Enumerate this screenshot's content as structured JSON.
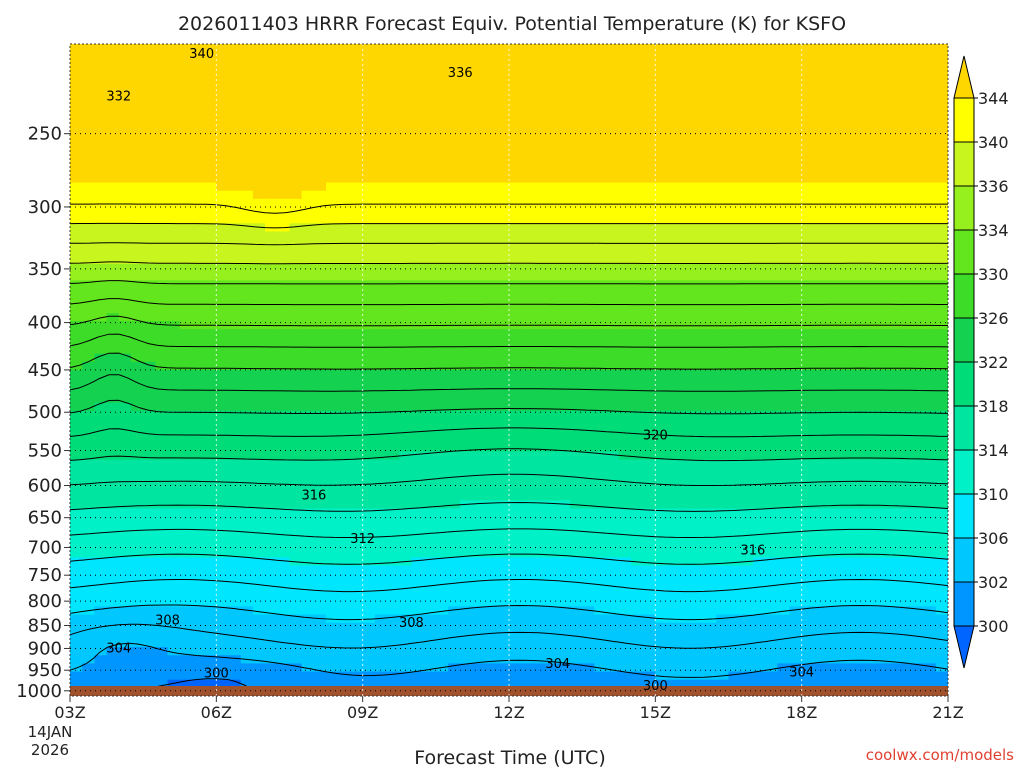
{
  "chart_data": {
    "type": "heatmap",
    "title": "2026011403 HRRR Forecast Equiv. Potential Temperature (K) for KSFO",
    "xlabel": "Forecast Time (UTC)",
    "ylabel": "",
    "x_ticks": [
      "03Z",
      "06Z",
      "09Z",
      "12Z",
      "15Z",
      "18Z",
      "21Z"
    ],
    "x_range": [
      3,
      21
    ],
    "date_label_line1": "14JAN",
    "date_label_line2": "2026",
    "y_ticks": [
      250,
      300,
      350,
      400,
      450,
      500,
      550,
      600,
      650,
      700,
      750,
      800,
      850,
      900,
      950,
      1000
    ],
    "y_range_hpa": [
      200,
      1013
    ],
    "y_scale": "log",
    "grid": "dotted",
    "colorbar": {
      "levels": [
        300,
        302,
        306,
        310,
        314,
        318,
        322,
        326,
        330,
        334,
        336,
        340,
        344
      ],
      "tick_labels": [
        "300",
        "302",
        "306",
        "310",
        "314",
        "318",
        "322",
        "326",
        "330",
        "334",
        "336",
        "340",
        "344"
      ],
      "colors": [
        "#0064ff",
        "#0096ff",
        "#00c8ff",
        "#00e6ff",
        "#00f0c8",
        "#00e6a0",
        "#00dc78",
        "#14d250",
        "#3cdc28",
        "#64e61e",
        "#96f01e",
        "#c8f51e",
        "#ffff00",
        "#ffd700"
      ],
      "extend": "both"
    },
    "contour_labels": [
      {
        "value": "340",
        "x": 5.7,
        "p": 205
      },
      {
        "value": "336",
        "x": 11.0,
        "p": 215
      },
      {
        "value": "332",
        "x": 4.0,
        "p": 228
      },
      {
        "value": "320",
        "x": 15.0,
        "p": 530
      },
      {
        "value": "316",
        "x": 8.0,
        "p": 615
      },
      {
        "value": "316",
        "x": 17.0,
        "p": 705
      },
      {
        "value": "312",
        "x": 9.0,
        "p": 685
      },
      {
        "value": "308",
        "x": 5.0,
        "p": 840
      },
      {
        "value": "308",
        "x": 10.0,
        "p": 845
      },
      {
        "value": "304",
        "x": 4.0,
        "p": 900
      },
      {
        "value": "304",
        "x": 13.0,
        "p": 935
      },
      {
        "value": "304",
        "x": 18.0,
        "p": 955
      },
      {
        "value": "300",
        "x": 6.0,
        "p": 958
      },
      {
        "value": "300",
        "x": 15.0,
        "p": 988
      }
    ]
  },
  "watermark": "coolwx.com/models",
  "colors": {
    "ground": "#a0522d",
    "contour": "#000000",
    "grid": "#000000"
  }
}
